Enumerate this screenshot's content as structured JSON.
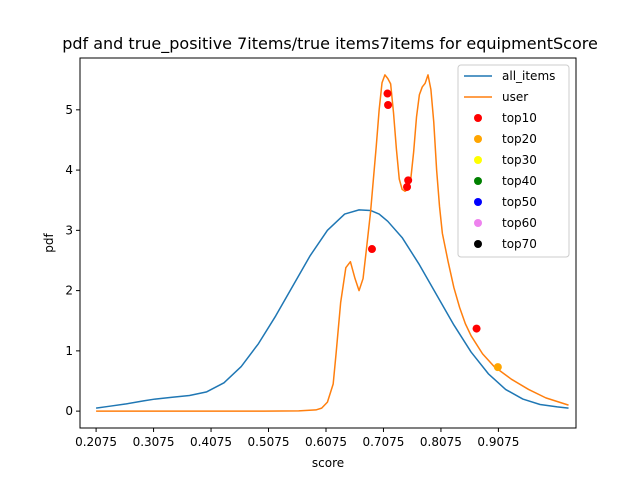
{
  "chart_data": {
    "type": "line",
    "title": "pdf and true_positive 7items/true items7items for equipmentScore",
    "xlabel": "score",
    "ylabel": "pdf",
    "xlim": [
      0.1795,
      1.0425
    ],
    "ylim": [
      -0.28,
      5.86
    ],
    "xticks": [
      0.2075,
      0.3075,
      0.4075,
      0.5075,
      0.6075,
      0.7075,
      0.8075,
      0.9075
    ],
    "xtick_labels": [
      "0.2075",
      "0.3075",
      "0.4075",
      "0.5075",
      "0.6075",
      "0.7075",
      "0.8075",
      "0.9075"
    ],
    "yticks": [
      0,
      1,
      2,
      3,
      4,
      5
    ],
    "ytick_labels": [
      "0",
      "1",
      "2",
      "3",
      "4",
      "5"
    ],
    "grid": false,
    "legend_position": "top-right",
    "series": [
      {
        "name": "all_items",
        "color": "#1f77b4",
        "x": [
          0.2075,
          0.23,
          0.26,
          0.29,
          0.31,
          0.34,
          0.37,
          0.4,
          0.43,
          0.46,
          0.49,
          0.52,
          0.55,
          0.58,
          0.61,
          0.64,
          0.665,
          0.685,
          0.7,
          0.715,
          0.74,
          0.77,
          0.8,
          0.83,
          0.86,
          0.89,
          0.92,
          0.95,
          0.98,
          1.01,
          1.0295
        ],
        "y": [
          0.05,
          0.08,
          0.12,
          0.17,
          0.2,
          0.23,
          0.26,
          0.32,
          0.47,
          0.74,
          1.12,
          1.58,
          2.08,
          2.58,
          3.0,
          3.27,
          3.34,
          3.33,
          3.27,
          3.15,
          2.88,
          2.43,
          1.93,
          1.43,
          0.98,
          0.62,
          0.36,
          0.2,
          0.11,
          0.07,
          0.05
        ]
      },
      {
        "name": "user",
        "color": "#ff7f0e",
        "x": [
          0.2075,
          0.3,
          0.4,
          0.5,
          0.56,
          0.59,
          0.6,
          0.61,
          0.62,
          0.625,
          0.633,
          0.642,
          0.65,
          0.658,
          0.665,
          0.672,
          0.678,
          0.685,
          0.69,
          0.695,
          0.7,
          0.705,
          0.71,
          0.715,
          0.72,
          0.725,
          0.73,
          0.735,
          0.74,
          0.745,
          0.75,
          0.755,
          0.76,
          0.765,
          0.77,
          0.775,
          0.78,
          0.785,
          0.79,
          0.795,
          0.8,
          0.805,
          0.81,
          0.82,
          0.83,
          0.84,
          0.85,
          0.86,
          0.88,
          0.9,
          0.93,
          0.96,
          0.99,
          1.0295
        ],
        "y": [
          0.0,
          0.0,
          0.0,
          0.0,
          0.005,
          0.02,
          0.05,
          0.15,
          0.45,
          0.95,
          1.8,
          2.38,
          2.48,
          2.2,
          2.0,
          2.2,
          2.7,
          3.3,
          3.85,
          4.4,
          5.0,
          5.45,
          5.58,
          5.52,
          5.43,
          4.95,
          4.35,
          3.85,
          3.68,
          3.65,
          3.68,
          3.85,
          4.3,
          4.88,
          5.25,
          5.38,
          5.44,
          5.58,
          5.34,
          4.8,
          4.0,
          3.4,
          2.95,
          2.48,
          2.05,
          1.72,
          1.45,
          1.25,
          0.95,
          0.74,
          0.53,
          0.36,
          0.22,
          0.1
        ]
      }
    ],
    "scatter_series": [
      {
        "name": "top10",
        "color": "#ff0000",
        "points": [
          {
            "x": 0.6875,
            "y": 2.69
          },
          {
            "x": 0.7145,
            "y": 5.27
          },
          {
            "x": 0.7155,
            "y": 5.08
          },
          {
            "x": 0.7485,
            "y": 3.72
          },
          {
            "x": 0.7505,
            "y": 3.83
          },
          {
            "x": 0.8695,
            "y": 1.37
          }
        ]
      },
      {
        "name": "top20",
        "color": "#ffa500",
        "points": [
          {
            "x": 0.9065,
            "y": 0.73
          }
        ]
      },
      {
        "name": "top30",
        "color": "#ffff00",
        "points": []
      },
      {
        "name": "top40",
        "color": "#008000",
        "points": []
      },
      {
        "name": "top50",
        "color": "#0000ff",
        "points": []
      },
      {
        "name": "top60",
        "color": "#ee82ee",
        "points": []
      },
      {
        "name": "top70",
        "color": "#000000",
        "points": []
      }
    ]
  }
}
